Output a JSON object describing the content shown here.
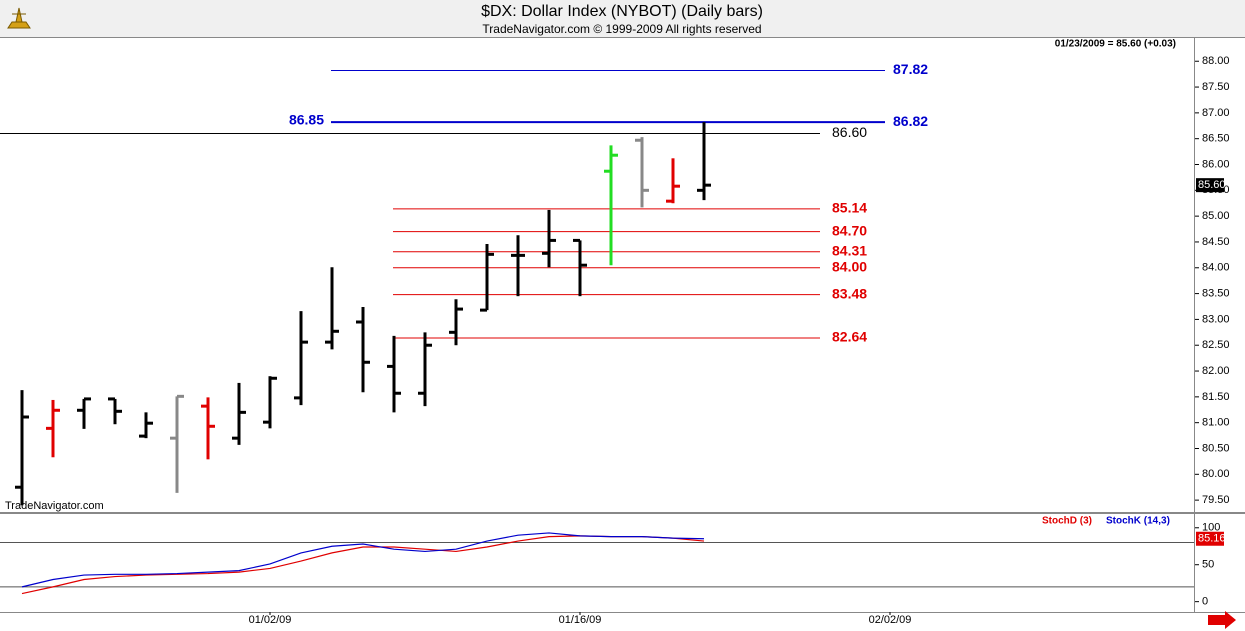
{
  "chart_data": [
    {
      "type": "ohlc",
      "title": "$DX:  Dollar Index (NYBOT)  (Daily bars)",
      "subtitle": "TradeNavigator.com © 1999-2009 All rights reserved",
      "readout": "01/23/2009 = 85.60 (+0.03)",
      "watermark": "TradeNavigator.com",
      "last_price_label": "85.60",
      "categories": [
        null,
        null,
        null,
        null,
        null,
        null,
        null,
        null,
        "01/02/09",
        null,
        null,
        null,
        null,
        null,
        null,
        null,
        null,
        null,
        "01/16/09",
        null,
        null,
        null,
        null,
        null,
        null,
        null,
        null,
        null,
        "02/02/09"
      ],
      "open": [
        79.75,
        80.89,
        81.24,
        81.46,
        80.74,
        80.7,
        81.32,
        80.7,
        81.01,
        81.48,
        82.56,
        82.95,
        82.09,
        81.57,
        82.75,
        83.18,
        84.24,
        84.28,
        84.53,
        85.87,
        86.47,
        85.29,
        85.5,
        null,
        null,
        null,
        null,
        null,
        null
      ],
      "high": [
        81.63,
        81.44,
        81.46,
        81.46,
        81.2,
        81.51,
        81.49,
        81.77,
        81.9,
        83.16,
        84.01,
        83.24,
        82.68,
        82.75,
        83.39,
        84.46,
        84.63,
        85.12,
        84.53,
        86.37,
        86.53,
        86.12,
        86.82,
        null,
        null,
        null,
        null,
        null,
        null
      ],
      "low": [
        79.4,
        80.33,
        80.88,
        80.97,
        80.7,
        79.64,
        80.29,
        80.57,
        80.89,
        81.34,
        82.42,
        81.59,
        81.2,
        81.32,
        82.5,
        83.18,
        83.45,
        84.01,
        83.45,
        84.05,
        85.17,
        85.25,
        85.31,
        null,
        null,
        null,
        null,
        null,
        null
      ],
      "close": [
        81.11,
        81.24,
        81.46,
        81.22,
        80.99,
        81.51,
        80.93,
        81.2,
        81.86,
        82.56,
        82.77,
        82.17,
        81.57,
        82.5,
        83.2,
        84.26,
        84.24,
        84.53,
        84.05,
        86.18,
        85.5,
        85.58,
        85.6,
        null,
        null,
        null,
        null,
        null,
        null
      ],
      "bar_colors": [
        "#000000",
        "#e00000",
        "#000000",
        "#000000",
        "#000000",
        "#888888",
        "#e00000",
        "#000000",
        "#000000",
        "#000000",
        "#000000",
        "#000000",
        "#000000",
        "#000000",
        "#000000",
        "#000000",
        "#000000",
        "#000000",
        "#000000",
        "#22dd22",
        "#888888",
        "#e00000",
        "#000000",
        null,
        null,
        null,
        null,
        null,
        null
      ],
      "ylim": [
        79.27,
        88.45
      ],
      "yticks": [
        {
          "value": 79.5,
          "label": "79.50"
        },
        {
          "value": 80,
          "label": "80.00"
        },
        {
          "value": 80.5,
          "label": "80.50"
        },
        {
          "value": 81,
          "label": "81.00"
        },
        {
          "value": 81.5,
          "label": "81.50"
        },
        {
          "value": 82,
          "label": "82.00"
        },
        {
          "value": 82.5,
          "label": "82.50"
        },
        {
          "value": 83,
          "label": "83.00"
        },
        {
          "value": 83.5,
          "label": "83.50"
        },
        {
          "value": 84,
          "label": "84.00"
        },
        {
          "value": 84.5,
          "label": "84.50"
        },
        {
          "value": 85,
          "label": "85.00"
        },
        {
          "value": 85.5,
          "label": "85.50"
        },
        {
          "value": 86,
          "label": "86.00"
        },
        {
          "value": 86.5,
          "label": "86.50"
        },
        {
          "value": 87,
          "label": "87.00"
        },
        {
          "value": 87.5,
          "label": "87.50"
        },
        {
          "value": 88,
          "label": "88.00"
        }
      ],
      "levels": [
        {
          "value": 87.82,
          "label": "87.82",
          "color": "#0000cc"
        },
        {
          "value": 86.82,
          "label": "86.82",
          "color": "#0000cc"
        },
        {
          "value": 86.6,
          "label": "86.60",
          "color": "#000000"
        },
        {
          "value": 85.14,
          "label": "85.14",
          "color": "#e00000"
        },
        {
          "value": 84.7,
          "label": "84.70",
          "color": "#e00000"
        },
        {
          "value": 84.31,
          "label": "84.31",
          "color": "#e00000"
        },
        {
          "value": 84,
          "label": "84.00",
          "color": "#e00000"
        },
        {
          "value": 83.48,
          "label": "83.48",
          "color": "#e00000"
        },
        {
          "value": 82.64,
          "label": "82.64",
          "color": "#e00000"
        }
      ],
      "annotations": [
        {
          "value": 86.85,
          "label": "86.85",
          "color": "#0000cc"
        }
      ]
    },
    {
      "type": "line",
      "series": [
        {
          "name": "StochD (3)",
          "color": "#e00000",
          "values": [
            11,
            20,
            30,
            34,
            36,
            37,
            38,
            40,
            45,
            55,
            66,
            74,
            74,
            71,
            68,
            74,
            82,
            88,
            89,
            88,
            88,
            86,
            82,
            null,
            null,
            null,
            null,
            null,
            null
          ]
        },
        {
          "name": "StochK (14,3)",
          "color": "#0000cc",
          "values": [
            20,
            30,
            36,
            37,
            37,
            38,
            40,
            42,
            51,
            66,
            75,
            78,
            71,
            68,
            71,
            82,
            90,
            93,
            89,
            88,
            88,
            86,
            85.16,
            null,
            null,
            null,
            null,
            null,
            null
          ]
        }
      ],
      "reference_lines": [
        80,
        20
      ],
      "ylim": [
        -14,
        120
      ],
      "yticks": [
        0,
        50,
        100
      ]
    }
  ]
}
